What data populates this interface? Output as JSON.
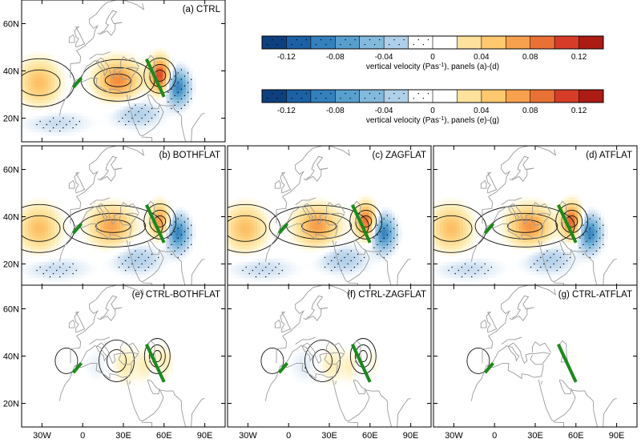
{
  "chart_data": {
    "type": "heatmap",
    "variable": "vertical velocity",
    "axes": {
      "lon_range": [
        -45,
        105
      ],
      "lat_range": [
        10,
        70
      ],
      "x_ticks": [
        -30,
        0,
        30,
        60,
        90
      ],
      "x_tick_labels": [
        "30W",
        "0",
        "30E",
        "60E",
        "90E"
      ],
      "y_ticks": [
        20,
        40,
        60
      ],
      "y_tick_labels": [
        "20N",
        "40N",
        "60N"
      ]
    },
    "colorbars": [
      {
        "label_prefix": "vertical velocity (Pas",
        "label_exp": "-1",
        "label_suffix": "), panels (a)-(d)",
        "range": [
          -0.14,
          0.14
        ],
        "ticks": [
          -0.12,
          -0.08,
          -0.04,
          0,
          0.04,
          0.08,
          0.12
        ],
        "tick_labels": [
          "-0.12",
          "-0.08",
          "-0.04",
          "0",
          "0.04",
          "0.08",
          "0.12"
        ]
      },
      {
        "label_prefix": "vertical velocity (Pas",
        "label_exp": "-1",
        "label_suffix": "), panels (e)-(g)",
        "range": [
          -0.14,
          0.14
        ],
        "ticks": [
          -0.12,
          -0.08,
          -0.04,
          0,
          0.04,
          0.08,
          0.12
        ],
        "tick_labels": [
          "-0.12",
          "-0.08",
          "-0.04",
          "0",
          "0.04",
          "0.08",
          "0.12"
        ]
      }
    ],
    "panels": [
      {
        "id": "a",
        "title": "(a) CTRL",
        "row": 0,
        "col": 0,
        "kind": "full",
        "variant": 0
      },
      {
        "id": "b",
        "title": "(b) BOTHFLAT",
        "row": 1,
        "col": 0,
        "kind": "full",
        "variant": 1
      },
      {
        "id": "c",
        "title": "(c) ZAGFLAT",
        "row": 1,
        "col": 1,
        "kind": "full",
        "variant": 2
      },
      {
        "id": "d",
        "title": "(d) ATFLAT",
        "row": 1,
        "col": 2,
        "kind": "full",
        "variant": 3
      },
      {
        "id": "e",
        "title": "(e) CTRL-BOTHFLAT",
        "row": 2,
        "col": 0,
        "kind": "diff",
        "variant": 1
      },
      {
        "id": "f",
        "title": "(f) CTRL-ZAGFLAT",
        "row": 2,
        "col": 1,
        "kind": "diff",
        "variant": 2
      },
      {
        "id": "g",
        "title": "(g) CTRL-ATFLAT",
        "row": 2,
        "col": 2,
        "kind": "diff",
        "variant": 3
      }
    ],
    "features": {
      "upward_centers": [
        {
          "lon": -32,
          "lat": 35,
          "amp": 0.055
        },
        {
          "lon": 26,
          "lat": 36,
          "amp": 0.08
        },
        {
          "lon": 57,
          "lat": 38,
          "amp": 0.11
        }
      ],
      "downward_centers": [
        {
          "lon": 70,
          "lat": 33,
          "amp": -0.09
        },
        {
          "lon": 40,
          "lat": 22,
          "amp": -0.03
        },
        {
          "lon": -20,
          "lat": 18,
          "amp": -0.02
        }
      ],
      "green_segments": [
        {
          "lon1": -7,
          "lat1": 33,
          "lon2": -1,
          "lat2": 37
        },
        {
          "lon1": 47,
          "lat1": 45,
          "lon2": 60,
          "lat2": 29
        }
      ]
    }
  }
}
